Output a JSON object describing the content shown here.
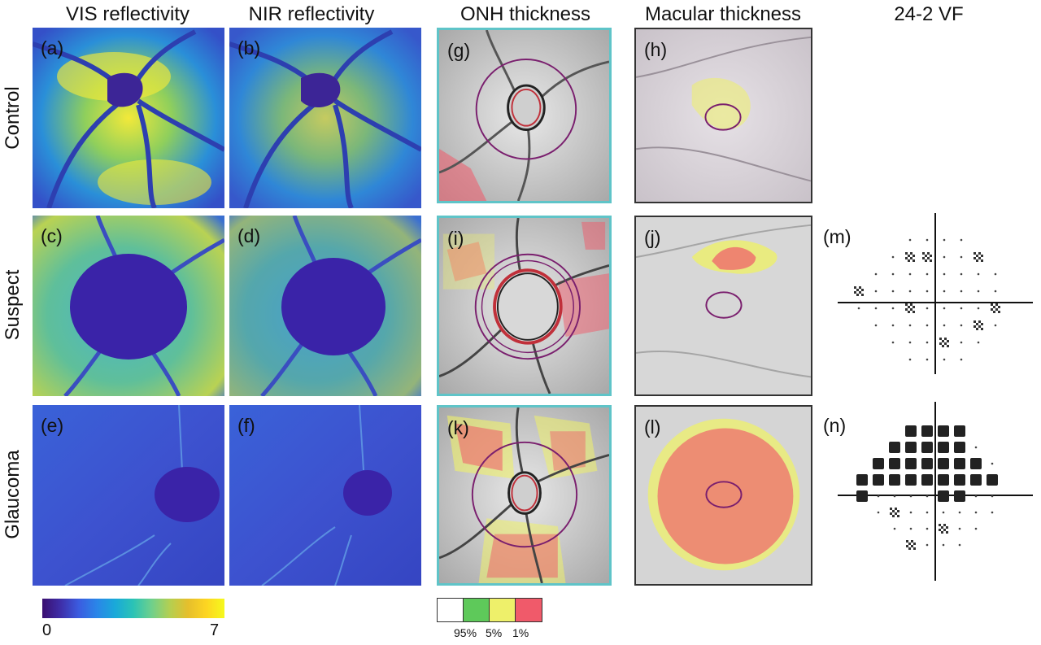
{
  "column_headers": [
    "VIS reflectivity",
    "NIR reflectivity",
    "ONH thickness",
    "Macular thickness",
    "24-2 VF"
  ],
  "row_labels": [
    "Control",
    "Suspect",
    "Glaucoma"
  ],
  "panel_labels": {
    "a": "(a)",
    "b": "(b)",
    "c": "(c)",
    "d": "(d)",
    "e": "(e)",
    "f": "(f)",
    "g": "(g)",
    "h": "(h)",
    "i": "(i)",
    "j": "(j)",
    "k": "(k)",
    "l": "(l)",
    "m": "(m)",
    "n": "(n)"
  },
  "colorbar": {
    "min_label": "0",
    "max_label": "7",
    "min": 0,
    "max": 7,
    "colormap": "parula"
  },
  "significance_legend": {
    "labels": [
      "95%",
      "5%",
      "1%"
    ],
    "colors": [
      "#ffffff",
      "#5ec95a",
      "#eef06a",
      "#f05a6a"
    ]
  },
  "colors": {
    "onh_frame": "#5fc4c8",
    "mac_frame": "#333333",
    "measure_circle": "#7a1f6e",
    "abnormal_red": "#f05a6a",
    "borderline_yellow": "#e9f05a"
  }
}
